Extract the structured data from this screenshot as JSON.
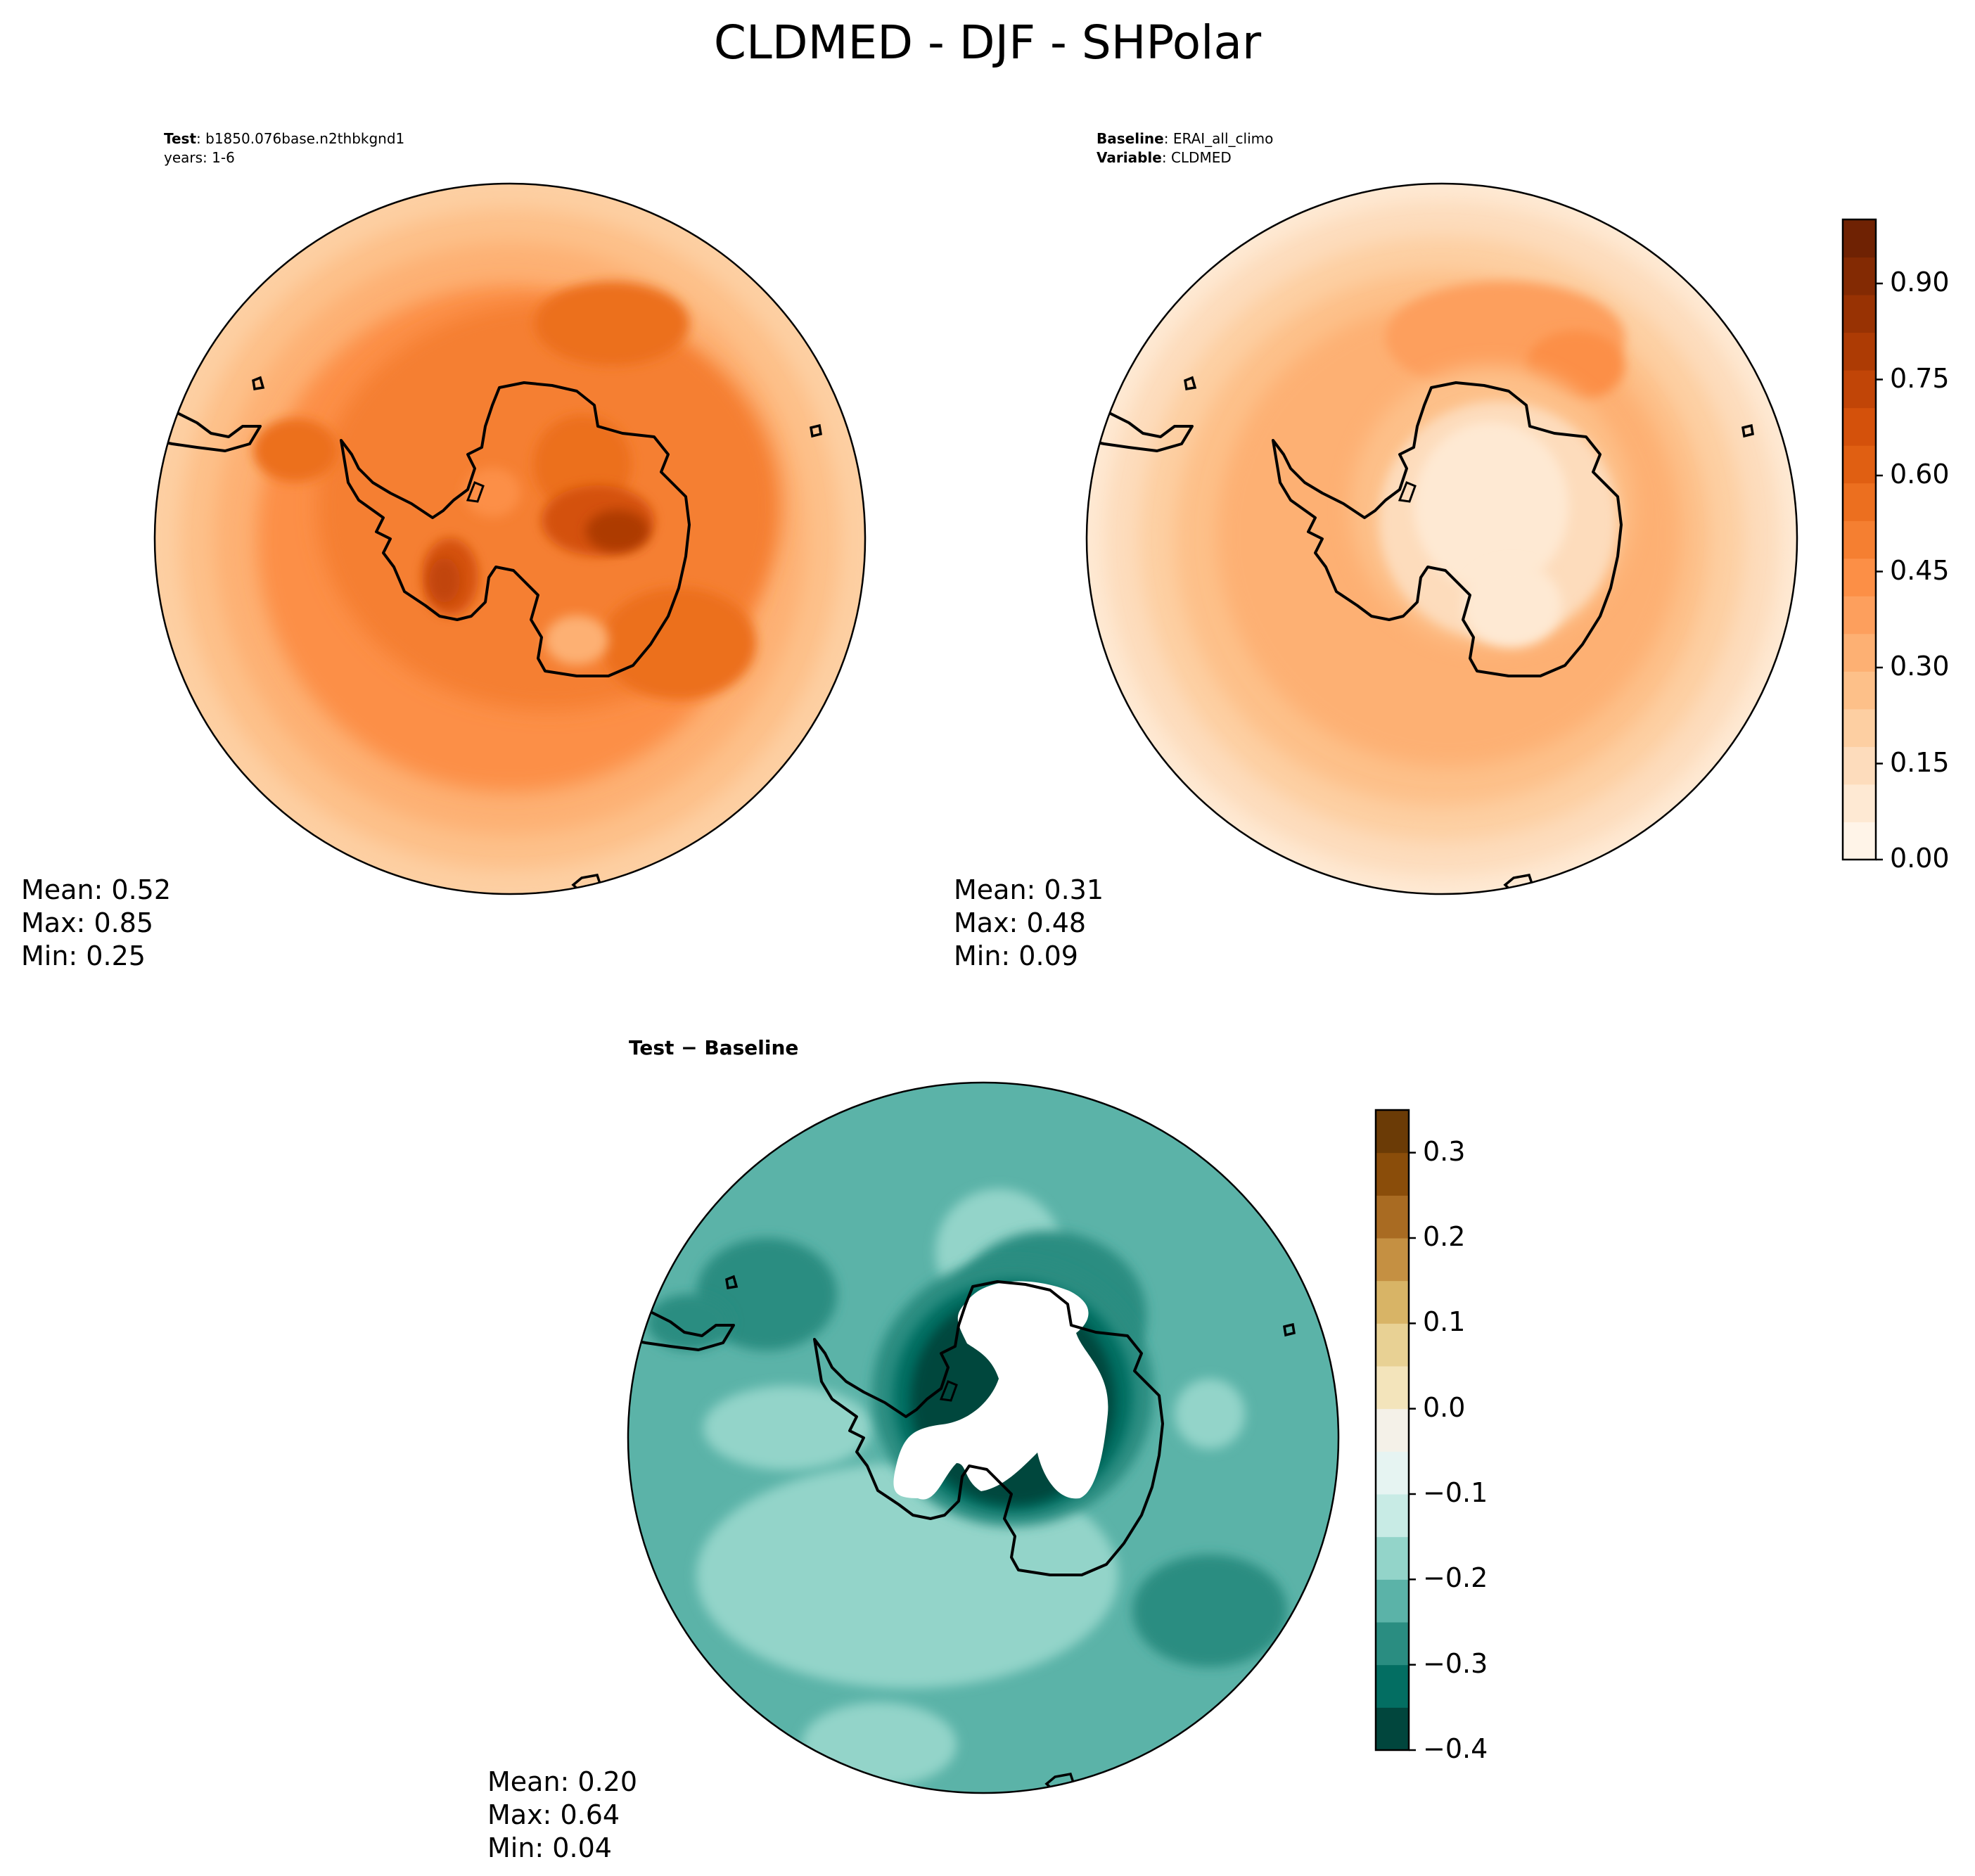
{
  "title": "CLDMED - DJF - SHPolar",
  "panels": {
    "test": {
      "label_bold": "Test",
      "label_sep": ": ",
      "label_value": "b1850.076base.n2thbkgnd1",
      "line2": "years: 1-6",
      "mean": "Mean:  0.52",
      "max": "Max:  0.85",
      "min": "Min:  0.25"
    },
    "baseline": {
      "label_bold": "Baseline",
      "label_sep": ": ",
      "label_value": "ERAI_all_climo",
      "var_bold": "Variable",
      "var_sep": ": ",
      "var_value": "CLDMED",
      "mean": "Mean:  0.31",
      "max": "Max:  0.48",
      "min": "Min:  0.09"
    },
    "diff": {
      "title": "Test − Baseline",
      "mean": "Mean:  0.20",
      "max": "Max:  0.64",
      "min": "Min:  0.04"
    }
  },
  "colorbars": {
    "main": {
      "ticks": [
        "0.00",
        "0.15",
        "0.30",
        "0.45",
        "0.60",
        "0.75",
        "0.90"
      ],
      "colors": [
        "#fff4e8",
        "#fee9d3",
        "#fddcbc",
        "#fdcfa2",
        "#fdc089",
        "#fdb073",
        "#fd9f5d",
        "#fc8f46",
        "#f57f31",
        "#ec6f1f",
        "#e05f12",
        "#d4510b",
        "#c14507",
        "#ad3b04",
        "#983203",
        "#832a03",
        "#6f2203"
      ]
    },
    "diff": {
      "ticks": [
        "0.3",
        "0.2",
        "0.1",
        "0.0",
        "−0.1",
        "−0.2",
        "−0.3",
        "−0.4"
      ],
      "colors": [
        "#01463d",
        "#036e62",
        "#2a8d81",
        "#5bb3a8",
        "#93d4c9",
        "#c8ebe5",
        "#e6f4f2",
        "#f4f1e8",
        "#f3e4bb",
        "#e8d194",
        "#d8b466",
        "#c59042",
        "#a96b22",
        "#8a4d0a",
        "#6b3b06"
      ]
    }
  },
  "chart_data": [
    {
      "type": "heatmap",
      "title": "CLDMED - DJF - SHPolar",
      "subtitle": "Test: b1850.076base.n2thbkgnd1, years: 1-6",
      "projection": "south polar stereographic",
      "colormap": "Oranges",
      "levels_range": [
        0.0,
        1.0
      ],
      "stats": {
        "mean": 0.52,
        "max": 0.85,
        "min": 0.25
      }
    },
    {
      "type": "heatmap",
      "subtitle": "Baseline: ERAI_all_climo, Variable: CLDMED",
      "projection": "south polar stereographic",
      "colormap": "Oranges",
      "levels_range": [
        0.0,
        1.0
      ],
      "colorbar_ticks": [
        0.0,
        0.15,
        0.3,
        0.45,
        0.6,
        0.75,
        0.9
      ],
      "stats": {
        "mean": 0.31,
        "max": 0.48,
        "min": 0.09
      }
    },
    {
      "type": "heatmap",
      "subtitle": "Test − Baseline",
      "projection": "south polar stereographic",
      "colormap": "BrBG",
      "levels_range": [
        -0.4,
        0.35
      ],
      "colorbar_ticks": [
        -0.4,
        -0.3,
        -0.2,
        -0.1,
        0.0,
        0.1,
        0.2,
        0.3
      ],
      "stats": {
        "mean": 0.2,
        "max": 0.64,
        "min": 0.04
      }
    }
  ]
}
